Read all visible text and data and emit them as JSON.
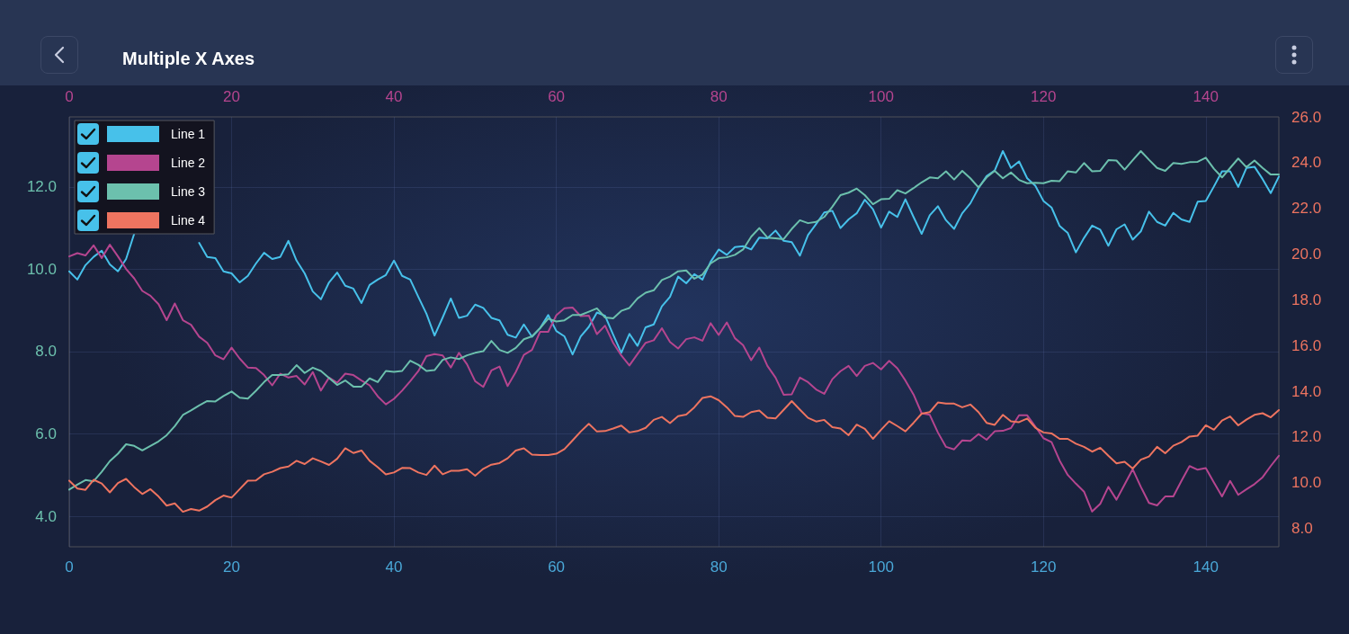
{
  "chart_data": {
    "type": "line",
    "title": "Multiple X Axes",
    "x": [
      0,
      1,
      2,
      3,
      4,
      5,
      6,
      7,
      8,
      9,
      10,
      11,
      12,
      13,
      14,
      15,
      16,
      17,
      18,
      19,
      20,
      21,
      22,
      23,
      24,
      25,
      26,
      27,
      28,
      29,
      30,
      31,
      32,
      33,
      34,
      35,
      36,
      37,
      38,
      39,
      40,
      41,
      42,
      43,
      44,
      45,
      46,
      47,
      48,
      49,
      50,
      51,
      52,
      53,
      54,
      55,
      56,
      57,
      58,
      59,
      60,
      61,
      62,
      63,
      64,
      65,
      66,
      67,
      68,
      69,
      70,
      71,
      72,
      73,
      74,
      75,
      76,
      77,
      78,
      79,
      80,
      81,
      82,
      83,
      84,
      85,
      86,
      87,
      88,
      89,
      90,
      91,
      92,
      93,
      94,
      95,
      96,
      97,
      98,
      99,
      100,
      101,
      102,
      103,
      104,
      105,
      106,
      107,
      108,
      109,
      110,
      111,
      112,
      113,
      114,
      115,
      116,
      117,
      118,
      119,
      120,
      121,
      122,
      123,
      124,
      125,
      126,
      127,
      128,
      129,
      130,
      131,
      132,
      133,
      134,
      135,
      136,
      137,
      138,
      139,
      140,
      141,
      142,
      143,
      144,
      145,
      146,
      147,
      148,
      149
    ],
    "series": [
      {
        "name": "Line 1",
        "color": "#47c1ea",
        "values": [
          9.95,
          9.75,
          10.1,
          10.3,
          10.45,
          10.12,
          9.95,
          10.25,
          10.86,
          null,
          null,
          null,
          null,
          null,
          null,
          null,
          10.64,
          10.3,
          10.27,
          9.95,
          9.9,
          9.68,
          9.84,
          10.14,
          10.4,
          10.25,
          10.3,
          10.69,
          10.21,
          9.9,
          9.46,
          9.27,
          9.68,
          9.92,
          9.6,
          9.53,
          9.18,
          9.62,
          9.75,
          9.86,
          10.21,
          9.84,
          9.75,
          9.33,
          8.92,
          8.39,
          8.83,
          9.29,
          8.82,
          8.87,
          9.14,
          9.06,
          8.82,
          8.76,
          8.41,
          8.34,
          8.66,
          8.36,
          8.57,
          8.89,
          8.5,
          8.37,
          7.93,
          8.37,
          8.6,
          8.95,
          8.87,
          8.41,
          7.97,
          8.43,
          8.14,
          8.59,
          8.66,
          9.1,
          9.33,
          9.82,
          9.66,
          9.88,
          9.75,
          10.18,
          10.48,
          10.35,
          10.54,
          10.56,
          10.48,
          10.77,
          10.75,
          10.94,
          10.69,
          10.66,
          10.33,
          10.83,
          11.1,
          11.38,
          11.42,
          11.0,
          11.21,
          11.36,
          11.69,
          11.46,
          11.01,
          11.4,
          11.27,
          11.7,
          11.27,
          10.86,
          11.31,
          11.53,
          11.19,
          10.98,
          11.36,
          11.6,
          11.97,
          12.26,
          12.4,
          12.87,
          12.46,
          12.62,
          12.21,
          12.03,
          11.66,
          11.5,
          11.05,
          10.88,
          10.41,
          10.76,
          11.06,
          10.96,
          10.57,
          10.97,
          11.09,
          10.72,
          10.92,
          11.4,
          11.15,
          11.06,
          11.37,
          11.21,
          11.15,
          11.64,
          11.66,
          12.01,
          12.38,
          12.38,
          12.0,
          12.46,
          12.49,
          12.19,
          11.85,
          12.25
        ]
      },
      {
        "name": "Line 2",
        "color": "#b5458f",
        "axis": "y2",
        "values": [
          19.9,
          20.04,
          19.94,
          20.38,
          19.83,
          20.41,
          19.9,
          19.35,
          18.94,
          18.39,
          18.18,
          17.81,
          17.11,
          17.84,
          17.11,
          16.91,
          16.39,
          16.12,
          15.57,
          15.4,
          15.91,
          15.43,
          15.04,
          15.02,
          14.71,
          14.26,
          14.77,
          14.6,
          14.67,
          14.3,
          14.84,
          14.03,
          14.6,
          14.37,
          14.77,
          14.71,
          14.47,
          14.26,
          13.78,
          13.43,
          13.67,
          14.03,
          14.44,
          14.88,
          15.54,
          15.63,
          15.57,
          15.04,
          15.68,
          15.18,
          14.44,
          14.19,
          14.91,
          15.08,
          14.23,
          14.84,
          15.59,
          15.81,
          16.6,
          16.6,
          17.33,
          17.63,
          17.66,
          17.29,
          17.31,
          16.5,
          16.87,
          16.12,
          15.57,
          15.13,
          15.63,
          16.12,
          16.23,
          16.76,
          16.16,
          15.87,
          16.28,
          16.36,
          16.21,
          16.98,
          16.46,
          17.01,
          16.32,
          16.02,
          15.36,
          15.91,
          15.11,
          14.6,
          13.85,
          13.87,
          14.6,
          14.4,
          14.08,
          13.89,
          14.53,
          14.88,
          15.11,
          14.67,
          15.11,
          15.24,
          14.96,
          15.33,
          15.01,
          14.47,
          13.86,
          13.04,
          12.97,
          12.2,
          11.57,
          11.46,
          11.85,
          11.83,
          12.13,
          11.88,
          12.25,
          12.27,
          12.39,
          12.95,
          12.95,
          12.46,
          11.95,
          11.78,
          10.97,
          10.34,
          9.96,
          9.61,
          8.74,
          9.08,
          9.82,
          9.26,
          9.92,
          10.59,
          9.82,
          9.12,
          9.01,
          9.4,
          9.4,
          10.08,
          10.73,
          10.57,
          10.64,
          10.01,
          9.4,
          10.08,
          9.47,
          9.71,
          9.94,
          10.24,
          10.73,
          11.18
        ]
      },
      {
        "name": "Line 3",
        "color": "#6cc0ad",
        "values": [
          4.65,
          4.77,
          4.88,
          4.85,
          5.08,
          5.34,
          5.52,
          5.75,
          5.71,
          5.6,
          5.71,
          5.82,
          5.97,
          6.19,
          6.46,
          6.57,
          6.69,
          6.8,
          6.79,
          6.92,
          7.03,
          6.88,
          6.86,
          7.05,
          7.26,
          7.43,
          7.43,
          7.45,
          7.67,
          7.48,
          7.61,
          7.53,
          7.36,
          7.19,
          7.3,
          7.15,
          7.15,
          7.35,
          7.26,
          7.53,
          7.51,
          7.53,
          7.78,
          7.68,
          7.53,
          7.55,
          7.8,
          7.86,
          7.82,
          7.91,
          7.97,
          8.01,
          8.26,
          8.04,
          7.97,
          8.09,
          8.3,
          8.37,
          8.57,
          8.8,
          8.73,
          8.76,
          8.89,
          8.89,
          8.97,
          9.05,
          8.83,
          8.81,
          8.99,
          9.06,
          9.29,
          9.43,
          9.49,
          9.74,
          9.82,
          9.95,
          9.97,
          9.77,
          9.87,
          10.14,
          10.27,
          10.29,
          10.35,
          10.48,
          10.79,
          11.0,
          10.77,
          10.75,
          10.73,
          10.98,
          11.19,
          11.12,
          11.15,
          11.27,
          11.52,
          11.8,
          11.86,
          11.96,
          11.8,
          11.58,
          11.7,
          11.71,
          11.92,
          11.84,
          11.97,
          12.11,
          12.23,
          12.21,
          12.38,
          12.18,
          12.39,
          12.21,
          11.99,
          12.23,
          12.39,
          12.21,
          12.35,
          12.17,
          12.09,
          12.1,
          12.09,
          12.15,
          12.14,
          12.38,
          12.35,
          12.58,
          12.38,
          12.39,
          12.65,
          12.64,
          12.42,
          12.65,
          12.87,
          12.66,
          12.46,
          12.39,
          12.58,
          12.56,
          12.6,
          12.61,
          12.71,
          12.44,
          12.23,
          12.46,
          12.69,
          12.48,
          12.64,
          12.46,
          12.3,
          12.3
        ]
      },
      {
        "name": "Line 4",
        "color": "#ee7460",
        "axis": "y2",
        "values": [
          10.09,
          9.75,
          9.69,
          10.13,
          9.97,
          9.58,
          9.99,
          10.17,
          9.81,
          9.51,
          9.72,
          9.4,
          9.0,
          9.1,
          8.73,
          8.85,
          8.78,
          8.96,
          9.24,
          9.44,
          9.35,
          9.72,
          10.09,
          10.1,
          10.37,
          10.48,
          10.64,
          10.71,
          10.96,
          10.82,
          11.07,
          10.93,
          10.78,
          11.05,
          11.51,
          11.3,
          11.41,
          10.96,
          10.68,
          10.37,
          10.45,
          10.65,
          10.64,
          10.45,
          10.34,
          10.75,
          10.37,
          10.52,
          10.52,
          10.59,
          10.31,
          10.61,
          10.79,
          10.86,
          11.07,
          11.41,
          11.51,
          11.23,
          11.21,
          11.21,
          11.27,
          11.47,
          11.85,
          12.24,
          12.58,
          12.24,
          12.26,
          12.37,
          12.5,
          12.2,
          12.26,
          12.4,
          12.75,
          12.88,
          12.61,
          12.91,
          12.98,
          13.3,
          13.71,
          13.78,
          13.61,
          13.3,
          12.92,
          12.88,
          13.09,
          13.16,
          12.84,
          12.81,
          13.19,
          13.57,
          13.2,
          12.84,
          12.68,
          12.75,
          12.43,
          12.37,
          12.08,
          12.54,
          12.36,
          11.92,
          12.32,
          12.69,
          12.48,
          12.25,
          12.62,
          13.02,
          13.09,
          13.51,
          13.46,
          13.46,
          13.3,
          13.42,
          13.09,
          12.62,
          12.53,
          12.97,
          12.69,
          12.65,
          12.81,
          12.41,
          12.2,
          12.16,
          11.92,
          11.92,
          11.71,
          11.57,
          11.36,
          11.53,
          11.18,
          10.85,
          10.92,
          10.62,
          11.01,
          11.15,
          11.57,
          11.29,
          11.62,
          11.78,
          12.02,
          12.06,
          12.51,
          12.32,
          12.72,
          12.9,
          12.51,
          12.76,
          12.97,
          13.04,
          12.86,
          13.18
        ]
      }
    ],
    "xlim": [
      0,
      149
    ],
    "xticks": [
      0,
      20,
      40,
      60,
      80,
      100,
      120,
      140
    ],
    "x2lim": [
      0,
      149
    ],
    "x2ticks": [
      0,
      20,
      40,
      60,
      80,
      100,
      120,
      140
    ],
    "ylim": [
      3.26,
      13.7
    ],
    "yticks": [
      {
        "value": 4,
        "label": "4.0"
      },
      {
        "value": 6,
        "label": "6.0"
      },
      {
        "value": 8,
        "label": "8.0"
      },
      {
        "value": 10,
        "label": "10.0"
      },
      {
        "value": 12,
        "label": "12.0"
      }
    ],
    "y2lim": [
      7.2,
      26
    ],
    "y2ticks": [
      {
        "value": 8,
        "label": "8.0"
      },
      {
        "value": 10,
        "label": "10.0"
      },
      {
        "value": 12,
        "label": "12.0"
      },
      {
        "value": 14,
        "label": "14.0"
      },
      {
        "value": 16,
        "label": "16.0"
      },
      {
        "value": 18,
        "label": "18.0"
      },
      {
        "value": 20,
        "label": "20.0"
      },
      {
        "value": 22,
        "label": "22.0"
      },
      {
        "value": 24,
        "label": "24.0"
      },
      {
        "value": 26,
        "label": "26.0"
      }
    ],
    "grid": true,
    "legend": "top left",
    "marker": "none",
    "line_style": "solid"
  }
}
